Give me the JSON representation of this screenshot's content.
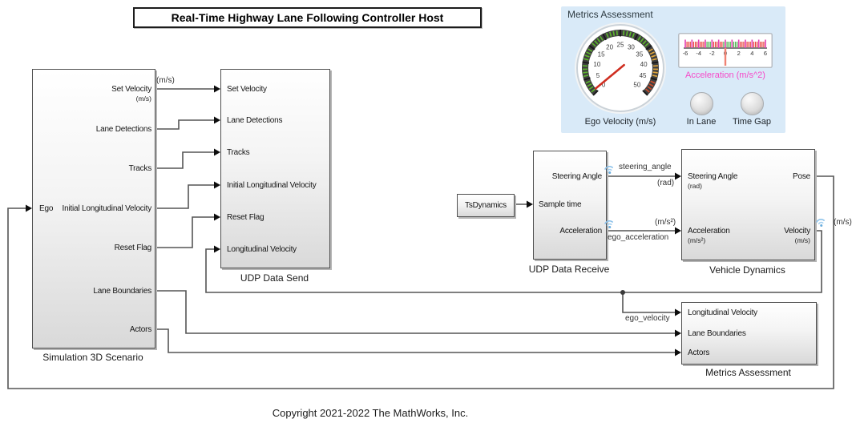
{
  "window": {
    "title": "Real-Time Highway Lane Following Controller Host",
    "copyright": "Copyright 2021-2022 The MathWorks, Inc."
  },
  "dashboard": {
    "title": "Metrics Assessment",
    "gauge": {
      "label": "Ego Velocity (m/s)",
      "min": 0,
      "max": 50,
      "major_step": 5,
      "tick_labels": [
        "0",
        "5",
        "10",
        "15",
        "20",
        "25",
        "30",
        "35",
        "40",
        "45",
        "50"
      ],
      "value": 1,
      "zones": [
        {
          "from": 0,
          "to": 35,
          "color": "#5db32e"
        },
        {
          "from": 35,
          "to": 44,
          "color": "#e0a63c"
        },
        {
          "from": 44,
          "to": 50,
          "color": "#cc4e2c"
        }
      ],
      "needle_color": "#cf2e21"
    },
    "linear_gauge": {
      "label": "Acceleration (m/s^2)",
      "min": -6,
      "max": 6,
      "tick_labels": [
        "-6",
        "-4",
        "-2",
        "0",
        "2",
        "4",
        "6"
      ],
      "value": 0,
      "minor_color": "#e8403a",
      "major_color": "#e23eb0",
      "green_color": "#4db34d",
      "green_zones": [
        [
          -2.75,
          -2
        ],
        [
          -0.25,
          1.75
        ]
      ],
      "needle_color": "#f08273"
    },
    "lamps": [
      {
        "label": "In Lane"
      },
      {
        "label": "Time Gap"
      }
    ]
  },
  "blocks": {
    "sim3d": {
      "name": "Simulation 3D Scenario",
      "input": "Ego",
      "outputs": [
        {
          "label": "Set Velocity",
          "sub": "(m/s)"
        },
        {
          "label": "Lane Detections",
          "sub": ""
        },
        {
          "label": "Tracks",
          "sub": ""
        },
        {
          "label": "Initial Longitudinal Velocity",
          "sub": ""
        },
        {
          "label": "Reset Flag",
          "sub": ""
        },
        {
          "label": "Lane Boundaries",
          "sub": ""
        },
        {
          "label": "Actors",
          "sub": ""
        }
      ]
    },
    "udp_send": {
      "name": "UDP Data Send",
      "inputs": [
        "Set Velocity",
        "Lane Detections",
        "Tracks",
        "Initial Longitudinal Velocity",
        "Reset Flag",
        "Longitudinal Velocity"
      ]
    },
    "ts_dynamics": {
      "name": "TsDynamics"
    },
    "udp_receive": {
      "name": "UDP Data Receive",
      "input": "Sample time",
      "outputs": [
        "Steering Angle",
        "Acceleration"
      ]
    },
    "vehicle_dynamics": {
      "name": "Vehicle Dynamics",
      "inputs": [
        {
          "label": "Steering Angle",
          "sub": "(rad)"
        },
        {
          "label": "Acceleration",
          "sub": "(m/s²)"
        }
      ],
      "outputs": [
        {
          "label": "Pose",
          "sub": ""
        },
        {
          "label": "Velocity",
          "sub": "(m/s)"
        }
      ]
    },
    "metrics": {
      "name": "Metrics Assessment",
      "inputs": [
        "Longitudinal Velocity",
        "Lane Boundaries",
        "Actors"
      ]
    }
  },
  "signals": {
    "set_velocity_units": "(m/s)",
    "steering_angle": "steering_angle",
    "steering_units": "(rad)",
    "accel_units": "(m/s²)",
    "ego_acceleration": "ego_acceleration",
    "ego_velocity": "ego_velocity",
    "velocity_units": "(m/s)"
  }
}
